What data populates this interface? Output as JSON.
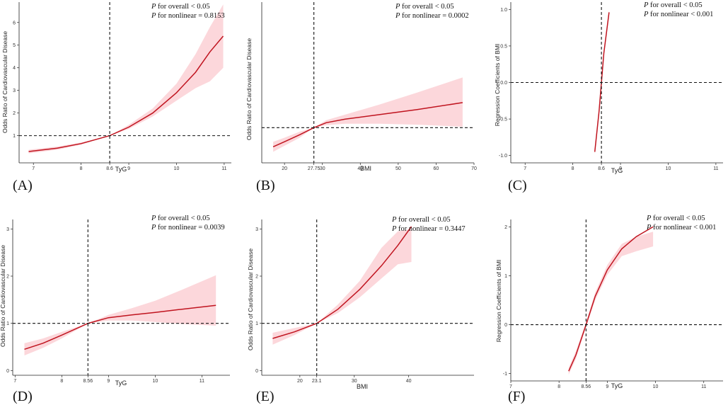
{
  "figure": {
    "panels": [
      {
        "panel_label": "(A)",
        "xlabel": "TyG",
        "ylabel": "Odds Ratio of Cardiovascular Disease",
        "p_overall": "for overall < 0.05",
        "p_nonlinear": "for nonlinear = 0.8153",
        "p_symbol": "P"
      },
      {
        "panel_label": "(B)",
        "xlabel": "BMI",
        "ylabel": "Odds Ratio of Cardiovascular Disease",
        "p_overall": "for overall < 0.05",
        "p_nonlinear": "for nonlinear = 0.0002",
        "p_symbol": "P"
      },
      {
        "panel_label": "(C)",
        "xlabel": "TyG",
        "ylabel": "Regression Coefficients of BMI",
        "p_overall": "for overall < 0.05",
        "p_nonlinear": "for nonlinear < 0.001",
        "p_symbol": "P"
      },
      {
        "panel_label": "(D)",
        "xlabel": "TyG",
        "ylabel": "Odds Ratio of Cardiovascular Disease",
        "p_overall": "for overall < 0.05",
        "p_nonlinear": "for nonlinear = 0.0039",
        "p_symbol": "P"
      },
      {
        "panel_label": "(E)",
        "xlabel": "BMI",
        "ylabel": "Odds Ratio of Cardiovascular Disease",
        "p_overall": "for overall < 0.05",
        "p_nonlinear": "for nonlinear = 0.3447",
        "p_symbol": "P"
      },
      {
        "panel_label": "(F)",
        "xlabel": "TyG",
        "ylabel": "Regression Coefficients of BMI",
        "p_overall": "for overall < 0.05",
        "p_nonlinear": "for nonlinear < 0.001",
        "p_symbol": "P"
      }
    ]
  },
  "colors": {
    "curve": "#c0141f",
    "band": "#f8a7b0",
    "reference": "#111111"
  },
  "chart_data": [
    {
      "type": "line",
      "title": "",
      "xlabel": "TyG",
      "ylabel": "Odds Ratio of Cardiovascular Disease",
      "xlim": [
        6.7,
        11.15
      ],
      "ylim": [
        -0.2,
        6.9
      ],
      "xticks": [
        "7",
        "8",
        "8.6",
        "9",
        "10",
        "11"
      ],
      "xtick_values": [
        7,
        8,
        8.6,
        9,
        10,
        11
      ],
      "yticks": [
        "1",
        "2",
        "3",
        "4",
        "5",
        "6"
      ],
      "ytick_values": [
        1,
        2,
        3,
        4,
        5,
        6
      ],
      "reference_x": 8.6,
      "reference_y": 1,
      "series": [
        {
          "name": "OR",
          "x": [
            6.9,
            7.5,
            8.0,
            8.6,
            9.0,
            9.5,
            10.0,
            10.4,
            10.7,
            10.98
          ],
          "y": [
            0.3,
            0.45,
            0.65,
            1.0,
            1.38,
            2.0,
            2.9,
            3.8,
            4.7,
            5.4
          ],
          "lower": [
            0.22,
            0.38,
            0.6,
            1.0,
            1.3,
            1.85,
            2.55,
            3.1,
            3.4,
            4.0
          ],
          "upper": [
            0.38,
            0.52,
            0.7,
            1.0,
            1.48,
            2.2,
            3.3,
            4.6,
            5.8,
            6.8
          ]
        }
      ]
    },
    {
      "type": "line",
      "title": "",
      "xlabel": "BMI",
      "ylabel": "Odds Ratio of Cardiovascular Disease",
      "xlim": [
        14,
        70
      ],
      "ylim": [
        0.3,
        3.5
      ],
      "xticks": [
        "20",
        "27.75",
        "30",
        "40",
        "50",
        "60",
        "70"
      ],
      "xtick_values": [
        20,
        27.75,
        30,
        40,
        50,
        60,
        70
      ],
      "yticks": [],
      "ytick_values": [],
      "reference_x": 27.75,
      "reference_y": 1,
      "series": [
        {
          "name": "OR",
          "x": [
            17,
            20,
            24,
            27.75,
            31,
            36,
            45,
            55,
            67
          ],
          "y": [
            0.62,
            0.72,
            0.86,
            1.0,
            1.1,
            1.17,
            1.26,
            1.36,
            1.5
          ],
          "lower": [
            0.52,
            0.64,
            0.8,
            1.0,
            1.05,
            1.08,
            1.08,
            1.06,
            1.02
          ],
          "upper": [
            0.72,
            0.8,
            0.92,
            1.0,
            1.15,
            1.26,
            1.46,
            1.7,
            2.0
          ]
        }
      ]
    },
    {
      "type": "line",
      "title": "",
      "xlabel": "TyG",
      "ylabel": "Regression Coefficients of BMI",
      "xlim": [
        6.7,
        11.15
      ],
      "ylim": [
        -1.1,
        1.1
      ],
      "xticks": [
        "7",
        "8",
        "8.6",
        "9",
        "10",
        "11"
      ],
      "xtick_values": [
        7,
        8,
        8.6,
        9,
        10,
        11
      ],
      "yticks": [
        "-1.0",
        "-0.5",
        "0.0",
        "0.5",
        "1.0"
      ],
      "ytick_values": [
        -1,
        -0.5,
        0,
        0.5,
        1
      ],
      "reference_x": 8.6,
      "reference_y": 0,
      "series": [
        {
          "name": "beta",
          "x": [
            8.46,
            8.55,
            8.6,
            8.65,
            8.76
          ],
          "y": [
            -0.95,
            -0.4,
            0.0,
            0.4,
            0.96
          ],
          "lower": [
            -0.98,
            -0.42,
            0.0,
            0.38,
            0.93
          ],
          "upper": [
            -0.92,
            -0.38,
            0.0,
            0.42,
            0.99
          ]
        }
      ]
    },
    {
      "type": "line",
      "title": "",
      "xlabel": "TyG",
      "ylabel": "Odds Ratio of Cardiovascular Disease",
      "xlim": [
        6.95,
        11.6
      ],
      "ylim": [
        -0.1,
        3.2
      ],
      "xticks": [
        "7",
        "8",
        "8.56",
        "9",
        "10",
        "11"
      ],
      "xtick_values": [
        7,
        8,
        8.56,
        9,
        10,
        11
      ],
      "yticks": [
        "0",
        "1",
        "2",
        "3"
      ],
      "ytick_values": [
        0,
        1,
        2,
        3
      ],
      "reference_x": 8.56,
      "reference_y": 1,
      "series": [
        {
          "name": "OR",
          "x": [
            7.2,
            7.6,
            8.0,
            8.56,
            9.0,
            9.5,
            10.0,
            10.5,
            11.3
          ],
          "y": [
            0.45,
            0.58,
            0.75,
            1.0,
            1.12,
            1.18,
            1.23,
            1.29,
            1.38
          ],
          "lower": [
            0.32,
            0.48,
            0.68,
            1.0,
            1.06,
            1.06,
            1.03,
            0.99,
            0.95
          ],
          "upper": [
            0.58,
            0.68,
            0.82,
            1.0,
            1.18,
            1.32,
            1.48,
            1.68,
            2.02
          ]
        }
      ]
    },
    {
      "type": "line",
      "title": "",
      "xlabel": "BMI",
      "ylabel": "Odds Ratio of Cardiovascular Disease",
      "xlim": [
        13,
        52
      ],
      "ylim": [
        -0.1,
        3.2
      ],
      "xticks": [
        "20",
        "23.1",
        "30",
        "40"
      ],
      "xtick_values": [
        20,
        23.1,
        30,
        40
      ],
      "yticks": [
        "0",
        "1",
        "2",
        "3"
      ],
      "ytick_values": [
        0,
        1,
        2,
        3
      ],
      "reference_x": 23.1,
      "reference_y": 1,
      "series": [
        {
          "name": "OR",
          "x": [
            15,
            19,
            23.1,
            27,
            31,
            35,
            38,
            40.5
          ],
          "y": [
            0.68,
            0.82,
            1.0,
            1.3,
            1.72,
            2.22,
            2.65,
            3.05
          ],
          "lower": [
            0.55,
            0.75,
            1.0,
            1.22,
            1.55,
            1.95,
            2.25,
            2.3
          ],
          "upper": [
            0.8,
            0.9,
            1.0,
            1.4,
            1.9,
            2.6,
            2.95,
            3.0
          ]
        }
      ]
    },
    {
      "type": "line",
      "title": "",
      "xlabel": "TyG",
      "ylabel": "Regression Coefficients of BMI",
      "xlim": [
        7.0,
        11.4
      ],
      "ylim": [
        -1.15,
        2.15
      ],
      "xticks": [
        "7",
        "8",
        "8.56",
        "9",
        "10",
        "11"
      ],
      "xtick_values": [
        7,
        8,
        8.56,
        9,
        10,
        11
      ],
      "yticks": [
        "-1",
        "0",
        "1",
        "2"
      ],
      "ytick_values": [
        -1,
        0,
        1,
        2
      ],
      "reference_x": 8.56,
      "reference_y": 0,
      "series": [
        {
          "name": "beta",
          "x": [
            8.2,
            8.35,
            8.56,
            8.75,
            9.0,
            9.3,
            9.6,
            9.95
          ],
          "y": [
            -0.95,
            -0.62,
            0.0,
            0.58,
            1.12,
            1.55,
            1.8,
            2.0
          ],
          "lower": [
            -1.02,
            -0.7,
            -0.05,
            0.5,
            1.02,
            1.4,
            1.5,
            1.6
          ],
          "upper": [
            -0.88,
            -0.54,
            0.05,
            0.66,
            1.22,
            1.65,
            1.8,
            1.9
          ]
        }
      ]
    }
  ]
}
